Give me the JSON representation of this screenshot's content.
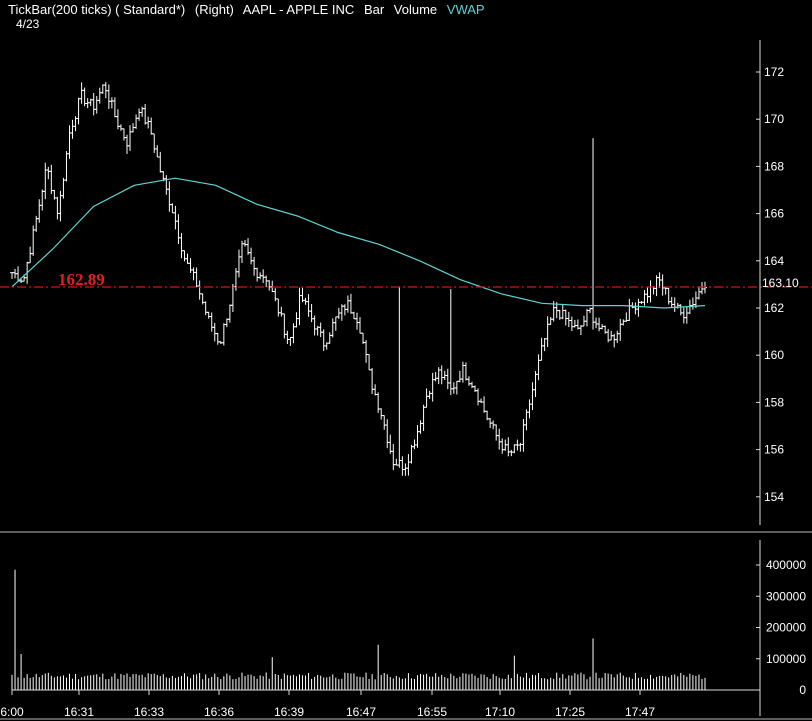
{
  "header": {
    "title": "TickBar(200 ticks) ( Standard*)",
    "axis_side": "(Right)",
    "symbol": "AAPL - APPLE INC",
    "studies": [
      "Bar",
      "Volume"
    ],
    "vwap_label": "VWAP",
    "date": "4/23"
  },
  "colors": {
    "background": "#000000",
    "bars": "#ffffff",
    "vwap": "#5fd3d3",
    "hline": "#d01818"
  },
  "chart_data": [
    {
      "type": "bar",
      "subtype": "ohlc",
      "title": "AAPL - APPLE INC",
      "x_tick_labels": [
        "6:00",
        "16:31",
        "16:33",
        "16:36",
        "16:39",
        "16:47",
        "16:55",
        "17:10",
        "17:25",
        "17:47"
      ],
      "y_tick_labels": [
        "172",
        "170",
        "168",
        "166",
        "164",
        "162",
        "160",
        "158",
        "156",
        "154"
      ],
      "ylim": [
        153,
        174
      ],
      "horizontal_line": {
        "value": 162.89,
        "label": "162.89"
      },
      "last_price_label": "163.10",
      "grid": false,
      "price_path": [
        163.5,
        163.2,
        165.5,
        168,
        166,
        169.5,
        171,
        170.5,
        171.5,
        170,
        169,
        170.5,
        169.5,
        167.5,
        166,
        164,
        163,
        161.5,
        160.5,
        162.5,
        164.7,
        163.6,
        163.3,
        162,
        160.5,
        162.5,
        161.5,
        160.5,
        161.5,
        162.2,
        161.5,
        159,
        157.5,
        155.5,
        155.3,
        156.6,
        158.5,
        159.3,
        158.5,
        159.4,
        158.7,
        157.5,
        156.5,
        155.8,
        156.2,
        158.4,
        160.5,
        162,
        161.5,
        161,
        161.9,
        161,
        160.7,
        161.6,
        162.2,
        162.6,
        163.2,
        162.3,
        161.7,
        162.3,
        163.1
      ],
      "vwap_path": [
        162.9,
        164.5,
        166.3,
        167.2,
        167.5,
        167.2,
        166.4,
        165.9,
        165.2,
        164.7,
        164.0,
        163.2,
        162.6,
        162.2,
        162.1,
        162.1,
        162.0,
        162.1
      ],
      "series": [
        {
          "name": "Bar"
        },
        {
          "name": "VWAP"
        }
      ]
    },
    {
      "type": "bar",
      "subtype": "volume",
      "title": "Volume",
      "y_tick_labels": [
        "400000",
        "300000",
        "200000",
        "100000",
        "0"
      ],
      "ylim": [
        0,
        500000
      ],
      "baseline_volume": 45000,
      "spikes": [
        {
          "near_x_label": "6:00",
          "value": 385000
        },
        {
          "near_x_label": "6:00",
          "value": 115000
        },
        {
          "near_x_label": "16:36",
          "value": 105000
        },
        {
          "near_x_label": "16:39",
          "value": 145000
        },
        {
          "near_x_label": "16:55",
          "value": 110000
        },
        {
          "near_x_label": "17:25",
          "value": 165000
        }
      ],
      "grid": false
    }
  ]
}
